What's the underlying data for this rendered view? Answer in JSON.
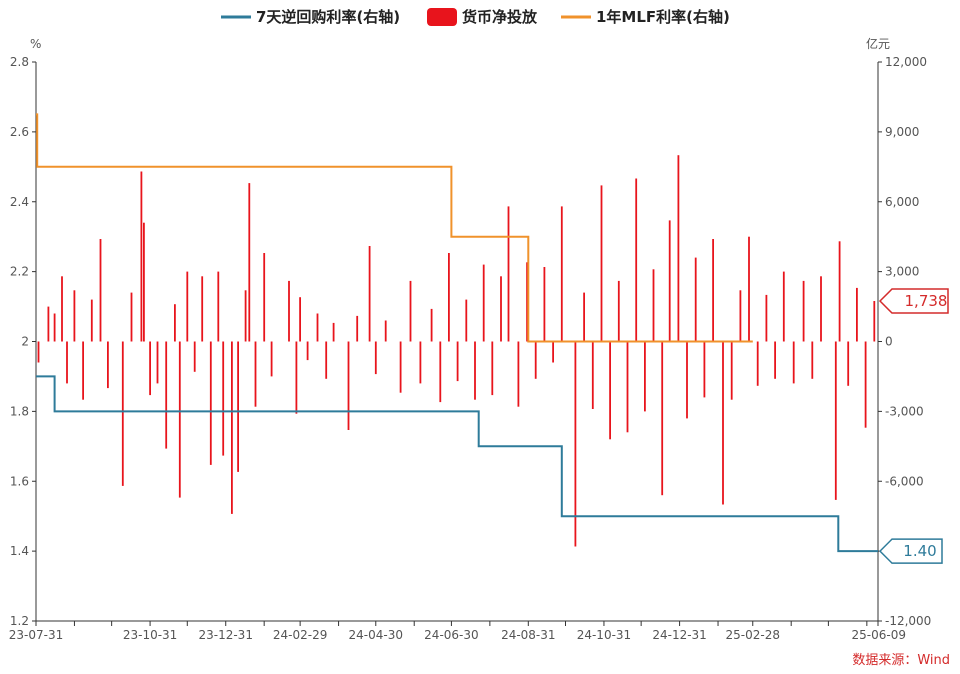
{
  "chart_data": {
    "type": "bar+line",
    "legend": [
      {
        "label": "7天逆回购利率(右轴)",
        "color": "#2e7b9a",
        "shape": "line"
      },
      {
        "label": "货币净投放",
        "color": "#e8141c",
        "shape": "box"
      },
      {
        "label": "1年MLF利率(右轴)",
        "color": "#f0922b",
        "shape": "line"
      }
    ],
    "left_axis": {
      "unit": "%",
      "min": 1.2,
      "max": 2.8,
      "ticks": [
        "1.2",
        "1.4",
        "1.6",
        "1.8",
        "2",
        "2.2",
        "2.4",
        "2.6",
        "2.8"
      ]
    },
    "right_axis": {
      "unit": "亿元",
      "min": -12000,
      "max": 12000,
      "ticks": [
        "-12,000",
        "-9,000",
        "-6,000",
        "-3,000",
        "0",
        "3,000",
        "6,000",
        "9,000",
        "12,000"
      ]
    },
    "x_axis": {
      "start": "2023-07-31",
      "end": "2025-06-09",
      "labels": [
        {
          "date": "2023-07-31",
          "text": "23-07-31"
        },
        {
          "date": "2023-10-31",
          "text": "23-10-31"
        },
        {
          "date": "2023-12-31",
          "text": "23-12-31"
        },
        {
          "date": "2024-02-29",
          "text": "24-02-29"
        },
        {
          "date": "2024-04-30",
          "text": "24-04-30"
        },
        {
          "date": "2024-06-30",
          "text": "24-06-30"
        },
        {
          "date": "2024-08-31",
          "text": "24-08-31"
        },
        {
          "date": "2024-10-31",
          "text": "24-10-31"
        },
        {
          "date": "2024-12-31",
          "text": "24-12-31"
        },
        {
          "date": "2025-02-28",
          "text": "25-02-28"
        },
        {
          "date": "2025-06-09",
          "text": "25-06-09"
        }
      ],
      "minor_ticks": [
        "2023-08-31",
        "2023-09-30",
        "2023-11-30",
        "2024-01-31",
        "2024-03-31",
        "2024-05-31",
        "2024-07-31",
        "2024-09-30",
        "2024-11-30",
        "2025-01-31",
        "2025-03-31",
        "2025-04-30",
        "2025-05-31"
      ]
    },
    "series": [
      {
        "name": "7天逆回购利率(右轴)",
        "type": "step",
        "axis": "left",
        "color": "#2e7b9a",
        "points": [
          [
            "2023-07-31",
            1.9
          ],
          [
            "2023-08-15",
            1.8
          ],
          [
            "2024-07-22",
            1.7
          ],
          [
            "2024-09-27",
            1.5
          ],
          [
            "2025-05-08",
            1.4
          ],
          [
            "2025-06-09",
            1.4
          ]
        ]
      },
      {
        "name": "1年MLF利率(右轴)",
        "type": "step",
        "axis": "left",
        "color": "#f0922b",
        "points": [
          [
            "2023-07-31",
            2.65
          ],
          [
            "2023-08-01",
            2.5
          ],
          [
            "2024-06-30",
            2.3
          ],
          [
            "2024-08-31",
            2.0
          ],
          [
            "2025-02-28",
            2.0
          ]
        ]
      },
      {
        "name": "货币净投放",
        "type": "bar",
        "axis": "right",
        "color": "#e8141c",
        "points": [
          [
            "2023-08-02",
            -900
          ],
          [
            "2023-08-10",
            1500
          ],
          [
            "2023-08-15",
            1200
          ],
          [
            "2023-08-21",
            2800
          ],
          [
            "2023-08-25",
            -1800
          ],
          [
            "2023-08-31",
            2200
          ],
          [
            "2023-09-07",
            -2500
          ],
          [
            "2023-09-14",
            1800
          ],
          [
            "2023-09-21",
            4400
          ],
          [
            "2023-09-27",
            -2000
          ],
          [
            "2023-10-09",
            -6200
          ],
          [
            "2023-10-16",
            2100
          ],
          [
            "2023-10-24",
            7300
          ],
          [
            "2023-10-26",
            5100
          ],
          [
            "2023-10-31",
            -2300
          ],
          [
            "2023-11-06",
            -1800
          ],
          [
            "2023-11-13",
            -4600
          ],
          [
            "2023-11-20",
            1600
          ],
          [
            "2023-11-24",
            -6700
          ],
          [
            "2023-11-30",
            3000
          ],
          [
            "2023-12-06",
            -1300
          ],
          [
            "2023-12-12",
            2800
          ],
          [
            "2023-12-19",
            -5300
          ],
          [
            "2023-12-25",
            3000
          ],
          [
            "2023-12-29",
            -4900
          ],
          [
            "2024-01-05",
            -7400
          ],
          [
            "2024-01-10",
            -5600
          ],
          [
            "2024-01-16",
            2200
          ],
          [
            "2024-01-19",
            6800
          ],
          [
            "2024-01-24",
            -2800
          ],
          [
            "2024-01-31",
            3800
          ],
          [
            "2024-02-06",
            -1500
          ],
          [
            "2024-02-20",
            2600
          ],
          [
            "2024-02-26",
            -3100
          ],
          [
            "2024-02-29",
            1900
          ],
          [
            "2024-03-06",
            -800
          ],
          [
            "2024-03-14",
            1200
          ],
          [
            "2024-03-21",
            -1600
          ],
          [
            "2024-03-27",
            800
          ],
          [
            "2024-04-08",
            -3800
          ],
          [
            "2024-04-15",
            1100
          ],
          [
            "2024-04-25",
            4100
          ],
          [
            "2024-04-30",
            -1400
          ],
          [
            "2024-05-08",
            900
          ],
          [
            "2024-05-20",
            -2200
          ],
          [
            "2024-05-28",
            2600
          ],
          [
            "2024-06-05",
            -1800
          ],
          [
            "2024-06-14",
            1400
          ],
          [
            "2024-06-21",
            -2600
          ],
          [
            "2024-06-28",
            3800
          ],
          [
            "2024-07-05",
            -1700
          ],
          [
            "2024-07-12",
            1800
          ],
          [
            "2024-07-19",
            -2500
          ],
          [
            "2024-07-26",
            3300
          ],
          [
            "2024-08-02",
            -2300
          ],
          [
            "2024-08-09",
            2800
          ],
          [
            "2024-08-15",
            5800
          ],
          [
            "2024-08-23",
            -2800
          ],
          [
            "2024-08-30",
            3400
          ],
          [
            "2024-09-06",
            -1600
          ],
          [
            "2024-09-13",
            3200
          ],
          [
            "2024-09-20",
            -900
          ],
          [
            "2024-09-27",
            5800
          ],
          [
            "2024-10-08",
            -8800
          ],
          [
            "2024-10-15",
            2100
          ],
          [
            "2024-10-22",
            -2900
          ],
          [
            "2024-10-29",
            6700
          ],
          [
            "2024-11-05",
            -4200
          ],
          [
            "2024-11-12",
            2600
          ],
          [
            "2024-11-19",
            -3900
          ],
          [
            "2024-11-26",
            7000
          ],
          [
            "2024-12-03",
            -3000
          ],
          [
            "2024-12-10",
            3100
          ],
          [
            "2024-12-17",
            -6600
          ],
          [
            "2024-12-23",
            5200
          ],
          [
            "2024-12-30",
            8000
          ],
          [
            "2025-01-06",
            -3300
          ],
          [
            "2025-01-13",
            3600
          ],
          [
            "2025-01-20",
            -2400
          ],
          [
            "2025-01-27",
            4400
          ],
          [
            "2025-02-04",
            -7000
          ],
          [
            "2025-02-11",
            -2500
          ],
          [
            "2025-02-18",
            2200
          ],
          [
            "2025-02-25",
            4500
          ],
          [
            "2025-03-04",
            -1900
          ],
          [
            "2025-03-11",
            2000
          ],
          [
            "2025-03-18",
            -1600
          ],
          [
            "2025-03-25",
            3000
          ],
          [
            "2025-04-02",
            -1800
          ],
          [
            "2025-04-10",
            2600
          ],
          [
            "2025-04-17",
            -1600
          ],
          [
            "2025-04-24",
            2800
          ],
          [
            "2025-05-06",
            -6800
          ],
          [
            "2025-05-09",
            4300
          ],
          [
            "2025-05-16",
            -1900
          ],
          [
            "2025-05-23",
            2300
          ],
          [
            "2025-05-30",
            -3700
          ],
          [
            "2025-06-06",
            1738
          ]
        ]
      }
    ],
    "callouts": {
      "bar_last": "1,738",
      "line_last": "1.40"
    },
    "source": "数据来源：Wind"
  }
}
